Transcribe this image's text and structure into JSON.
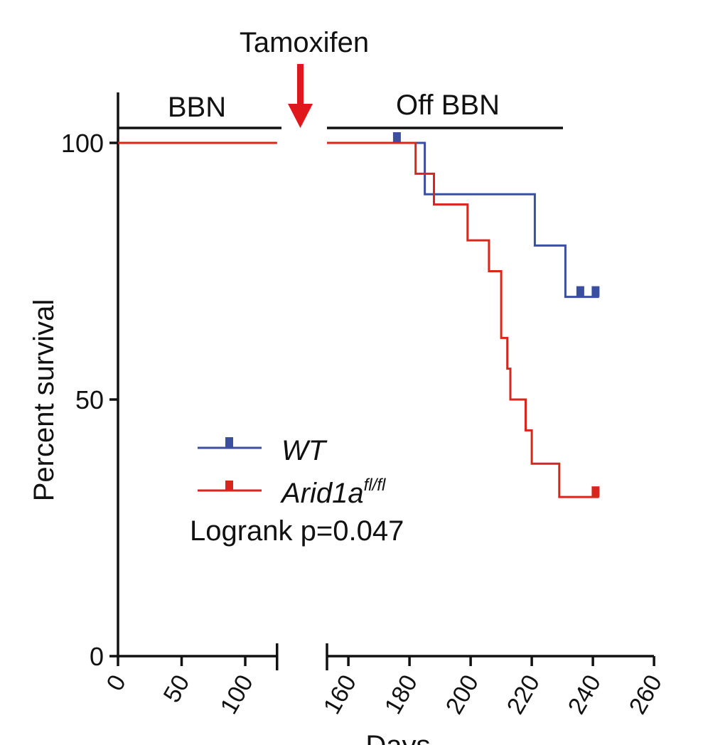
{
  "chart_data": {
    "type": "line",
    "subtype": "kaplan-meier",
    "ylabel": "Percent survival",
    "xlabel": "Days",
    "ylim": [
      0,
      100
    ],
    "yticks": [
      0,
      50,
      100
    ],
    "x_segments": [
      {
        "range": [
          0,
          125
        ],
        "ticks": [
          "0",
          "50",
          "100"
        ]
      },
      {
        "range": [
          153,
          260
        ],
        "ticks": [
          "160",
          "180",
          "200",
          "220",
          "240",
          "260"
        ]
      }
    ],
    "annotations": {
      "tamoxifen": "Tamoxifen",
      "bbn": "BBN",
      "off_bbn": "Off BBN",
      "logrank": "Logrank p=0.047"
    },
    "legend": {
      "position": "lower-left"
    },
    "series": [
      {
        "name": "WT",
        "color": "#3a4fa0",
        "steps": [
          [
            0,
            100
          ],
          [
            185,
            100
          ],
          [
            185,
            90
          ],
          [
            221,
            90
          ],
          [
            221,
            80
          ],
          [
            231,
            80
          ],
          [
            231,
            70
          ],
          [
            242,
            70
          ]
        ],
        "censored": [
          [
            176,
            100
          ],
          [
            236,
            70
          ],
          [
            241,
            70
          ]
        ]
      },
      {
        "name": "Arid1a",
        "name_sup": "fl/fl",
        "color": "#d9261c",
        "steps": [
          [
            0,
            100
          ],
          [
            182,
            100
          ],
          [
            182,
            94
          ],
          [
            188,
            94
          ],
          [
            188,
            88
          ],
          [
            199,
            88
          ],
          [
            199,
            81
          ],
          [
            206,
            81
          ],
          [
            206,
            75
          ],
          [
            210,
            75
          ],
          [
            210,
            62
          ],
          [
            212,
            62
          ],
          [
            212,
            56
          ],
          [
            213,
            56
          ],
          [
            213,
            50
          ],
          [
            218,
            50
          ],
          [
            218,
            44
          ],
          [
            220,
            44
          ],
          [
            220,
            37.5
          ],
          [
            229,
            37.5
          ],
          [
            229,
            31
          ],
          [
            242,
            31
          ]
        ],
        "censored": [
          [
            241,
            31
          ]
        ]
      }
    ]
  }
}
